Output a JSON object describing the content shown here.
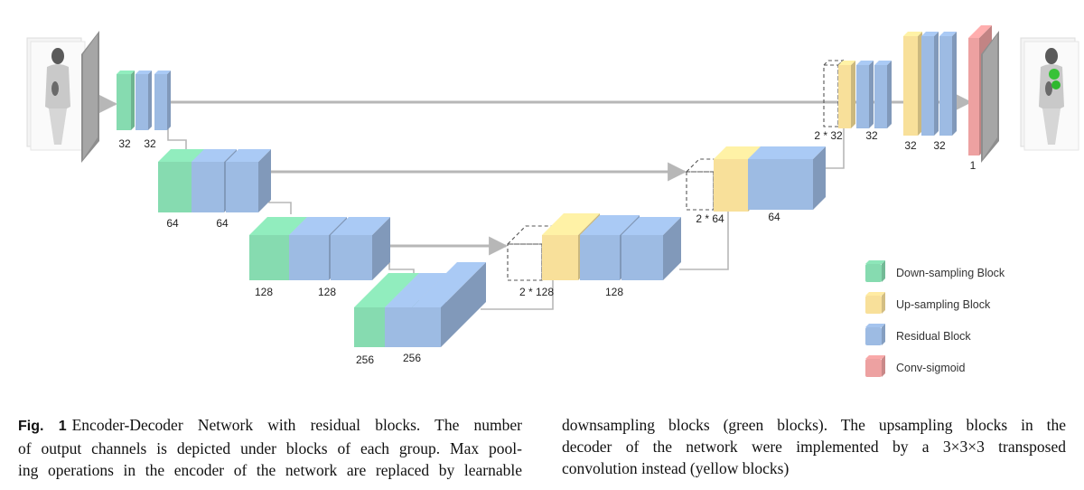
{
  "labels": {
    "enc1_green": "32",
    "enc1_blue": "32",
    "enc2_green": "64",
    "enc2_blue": "64",
    "enc3_green": "128",
    "enc3_blue": "128",
    "enc4_green": "256",
    "enc4_blue": "256",
    "dec3_up": "2 * 128",
    "dec3_blue": "128",
    "dec2_up": "2 * 64",
    "dec2_blue": "64",
    "dec1_up": "2 * 32",
    "dec1_blue": "32",
    "out_yellow": "32",
    "out_blue": "32",
    "out_sigmoid": "1"
  },
  "legend": [
    {
      "label": "Down-sampling Block",
      "color": "#86dbb0"
    },
    {
      "label": "Up-sampling Block",
      "color": "#f8e09a"
    },
    {
      "label": "Residual Block",
      "color": "#9dbbe3"
    },
    {
      "label": "Conv-sigmoid",
      "color": "#eda1a1"
    }
  ],
  "colors": {
    "down": "#86dbb0",
    "up": "#f8e09a",
    "residual": "#9dbbe3",
    "sigmoid": "#eda1a1",
    "arrow": "#b7b7b7"
  },
  "caption": {
    "fig": "Fig. 1",
    "left_lines": [
      "Encoder-Decoder Network with residual blocks. The number",
      "of output channels is depicted under blocks of each group. Max pool-",
      "ing operations in the encoder of the network are replaced by learnable"
    ],
    "right_lines": [
      "downsampling blocks (green blocks). The upsampling blocks in the",
      "decoder of the network were implemented by a 3×3×3 transposed",
      "convolution instead (yellow blocks)"
    ]
  }
}
